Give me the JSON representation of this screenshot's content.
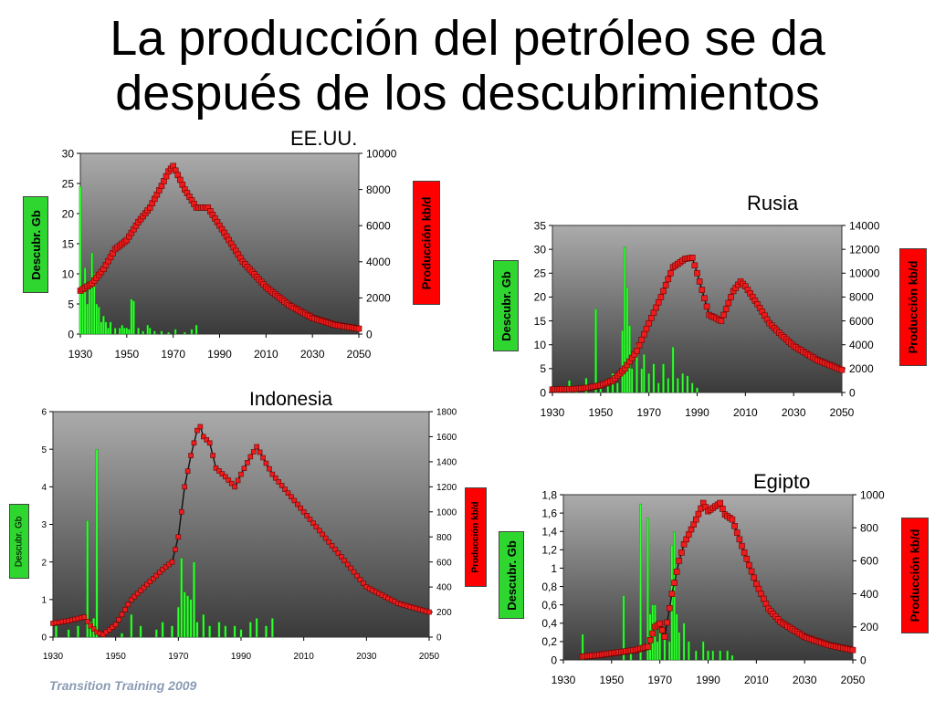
{
  "slide": {
    "title_line1": "La producción del petróleo se da",
    "title_line2": "después de los descubrimientos",
    "footer": "Transition Training 2009"
  },
  "colors": {
    "discoveries": "#33ff33",
    "production_marker": "#ee1c1c",
    "production_line": "#111111",
    "left_label_bg": "#2fd62f",
    "right_label_bg": "#ff0000"
  },
  "chart_data": [
    {
      "id": "usa",
      "type": "bar+line",
      "title": "EE.UU.",
      "ylabel_left": "Descubr. Gb",
      "ylabel_right": "Producción kb/d",
      "x_ticks": [
        "1930",
        "1950",
        "1970",
        "1990",
        "2010",
        "2030",
        "2050"
      ],
      "xlim": [
        1930,
        2050
      ],
      "ylim_left": [
        0,
        30
      ],
      "left_ticks": [
        "0",
        "5",
        "10",
        "15",
        "20",
        "25",
        "30"
      ],
      "ylim_right": [
        0,
        10000
      ],
      "right_ticks": [
        "0",
        "2000",
        "4000",
        "6000",
        "8000",
        "10000"
      ],
      "series": [
        {
          "kind": "bar",
          "axis": "left",
          "x": [
            1930,
            1931,
            1932,
            1933,
            1934,
            1935,
            1936,
            1937,
            1938,
            1939,
            1940,
            1941,
            1942,
            1943,
            1945,
            1947,
            1948,
            1949,
            1950,
            1951,
            1952,
            1953,
            1955,
            1957,
            1959,
            1960,
            1962,
            1965,
            1968,
            1971,
            1975,
            1978,
            1980
          ],
          "y": [
            24.5,
            8,
            11,
            5,
            9,
            13.5,
            10,
            5,
            4.5,
            2,
            3,
            2,
            1,
            2,
            1,
            1,
            1.5,
            1,
            1,
            0.8,
            5.8,
            5.5,
            1,
            0.5,
            1.5,
            1,
            0.5,
            0.5,
            0.3,
            0.8,
            0.3,
            0.8,
            1.5
          ]
        },
        {
          "kind": "line",
          "axis": "right",
          "x": [
            1930,
            1935,
            1940,
            1945,
            1950,
            1955,
            1960,
            1965,
            1968,
            1970,
            1972,
            1975,
            1980,
            1985,
            1990,
            1995,
            2000,
            2010,
            2020,
            2030,
            2040,
            2050
          ],
          "y": [
            2400,
            2800,
            3600,
            4700,
            5200,
            6200,
            7000,
            8200,
            9000,
            9300,
            8800,
            8000,
            7000,
            7000,
            6000,
            5000,
            4000,
            2600,
            1600,
            900,
            500,
            300
          ]
        }
      ]
    },
    {
      "id": "russia",
      "type": "bar+line",
      "title": "Rusia",
      "ylabel_left": "Descubr. Gb",
      "ylabel_right": "Producción kb/d",
      "x_ticks": [
        "1930",
        "1950",
        "1970",
        "1990",
        "2010",
        "2030",
        "2050"
      ],
      "xlim": [
        1930,
        2050
      ],
      "ylim_left": [
        0,
        35
      ],
      "left_ticks": [
        "0",
        "5",
        "10",
        "15",
        "20",
        "25",
        "30",
        "35"
      ],
      "ylim_right": [
        0,
        14000
      ],
      "right_ticks": [
        "0",
        "2000",
        "4000",
        "6000",
        "8000",
        "10000",
        "12000",
        "14000"
      ],
      "series": [
        {
          "kind": "bar",
          "axis": "left",
          "x": [
            1937,
            1940,
            1944,
            1948,
            1950,
            1953,
            1955,
            1957,
            1959,
            1960,
            1961,
            1962,
            1963,
            1965,
            1967,
            1968,
            1970,
            1972,
            1974,
            1976,
            1978,
            1980,
            1982,
            1984,
            1986,
            1988,
            1990
          ],
          "y": [
            2.5,
            1,
            3,
            17.5,
            2,
            1.5,
            4,
            2,
            13,
            30.5,
            22,
            14,
            5,
            10,
            5,
            8,
            4,
            6,
            2,
            6,
            3,
            9.5,
            3,
            4,
            3.5,
            2,
            1
          ]
        },
        {
          "kind": "line",
          "axis": "right",
          "x": [
            1930,
            1940,
            1945,
            1950,
            1955,
            1960,
            1965,
            1970,
            1975,
            1980,
            1985,
            1988,
            1990,
            1995,
            2000,
            2005,
            2008,
            2010,
            2015,
            2020,
            2025,
            2030,
            2040,
            2050
          ],
          "y": [
            250,
            300,
            400,
            600,
            1000,
            2000,
            3500,
            5800,
            8000,
            10500,
            11200,
            11300,
            10000,
            6500,
            6000,
            8500,
            9300,
            8900,
            7400,
            5800,
            4800,
            3900,
            2700,
            1900
          ]
        }
      ]
    },
    {
      "id": "indonesia",
      "type": "bar+line",
      "title": "Indonesia",
      "ylabel_left": "Descubr. Gb",
      "ylabel_right": "Producción kb/d",
      "x_ticks": [
        "1930",
        "1950",
        "1970",
        "1990",
        "2010",
        "2030",
        "2050"
      ],
      "xlim": [
        1930,
        2050
      ],
      "ylim_left": [
        0,
        6
      ],
      "left_ticks": [
        "0",
        "1",
        "2",
        "3",
        "4",
        "5",
        "6"
      ],
      "ylim_right": [
        0,
        1800
      ],
      "right_ticks": [
        "0",
        "200",
        "400",
        "600",
        "800",
        "1000",
        "1200",
        "1400",
        "1600",
        "1800"
      ],
      "series": [
        {
          "kind": "bar",
          "axis": "left",
          "x": [
            1931,
            1935,
            1938,
            1941,
            1942,
            1943,
            1944,
            1946,
            1952,
            1955,
            1958,
            1963,
            1965,
            1968,
            1970,
            1971,
            1972,
            1973,
            1974,
            1975,
            1976,
            1978,
            1980,
            1983,
            1985,
            1988,
            1990,
            1993,
            1995,
            1998,
            2000
          ],
          "y": [
            0.3,
            0.2,
            0.3,
            3.1,
            0.4,
            0.5,
            5,
            0.1,
            0.1,
            0.6,
            0.3,
            0.2,
            0.4,
            0.3,
            0.8,
            2.1,
            1.2,
            1.1,
            1,
            2,
            0.4,
            0.6,
            0.3,
            0.4,
            0.3,
            0.3,
            0.2,
            0.4,
            0.5,
            0.3,
            0.5
          ]
        },
        {
          "kind": "line",
          "axis": "right",
          "x": [
            1930,
            1935,
            1940,
            1942,
            1944,
            1946,
            1950,
            1955,
            1960,
            1965,
            1968,
            1970,
            1972,
            1974,
            1976,
            1977,
            1978,
            1980,
            1982,
            1985,
            1988,
            1990,
            1993,
            1995,
            2000,
            2010,
            2020,
            2030,
            2040,
            2050
          ],
          "y": [
            110,
            130,
            160,
            90,
            40,
            20,
            100,
            300,
            420,
            540,
            600,
            800,
            1200,
            1450,
            1650,
            1680,
            1600,
            1550,
            1350,
            1280,
            1200,
            1300,
            1440,
            1520,
            1300,
            1000,
            700,
            400,
            270,
            200
          ]
        }
      ]
    },
    {
      "id": "egypt",
      "type": "bar+line",
      "title": "Egipto",
      "ylabel_left": "Descubr. Gb",
      "ylabel_right": "Producción kb/d",
      "x_ticks": [
        "1930",
        "1950",
        "1970",
        "1990",
        "2010",
        "2030",
        "2050"
      ],
      "xlim": [
        1930,
        2050
      ],
      "ylim_left": [
        0,
        1.8
      ],
      "left_ticks": [
        "0",
        "0,2",
        "0,4",
        "0,6",
        "0,8",
        "1",
        "1,2",
        "1,4",
        "1,6",
        "1,8"
      ],
      "ylim_right": [
        0,
        1000
      ],
      "right_ticks": [
        "0",
        "200",
        "400",
        "600",
        "800",
        "1000"
      ],
      "series": [
        {
          "kind": "bar",
          "axis": "left",
          "x": [
            1938,
            1955,
            1958,
            1962,
            1965,
            1966,
            1967,
            1968,
            1969,
            1970,
            1972,
            1974,
            1975,
            1976,
            1977,
            1978,
            1980,
            1982,
            1985,
            1988,
            1990,
            1992,
            1995,
            1998,
            2000
          ],
          "y": [
            0.28,
            0.7,
            0.1,
            1.7,
            1.55,
            0.5,
            0.6,
            0.6,
            0.2,
            0.4,
            0.3,
            0.2,
            1.25,
            1.4,
            0.5,
            0.3,
            0.4,
            0.2,
            0.1,
            0.2,
            0.1,
            0.1,
            0.1,
            0.1,
            0.05
          ]
        },
        {
          "kind": "line",
          "axis": "right",
          "x": [
            1938,
            1945,
            1950,
            1955,
            1960,
            1965,
            1968,
            1970,
            1972,
            1975,
            1978,
            1980,
            1985,
            1988,
            1990,
            1995,
            1997,
            2000,
            2005,
            2010,
            2015,
            2020,
            2030,
            2040,
            2050
          ],
          "y": [
            20,
            30,
            40,
            50,
            60,
            80,
            200,
            220,
            140,
            400,
            600,
            700,
            850,
            950,
            900,
            950,
            880,
            850,
            650,
            460,
            310,
            230,
            140,
            90,
            60
          ]
        }
      ]
    }
  ]
}
